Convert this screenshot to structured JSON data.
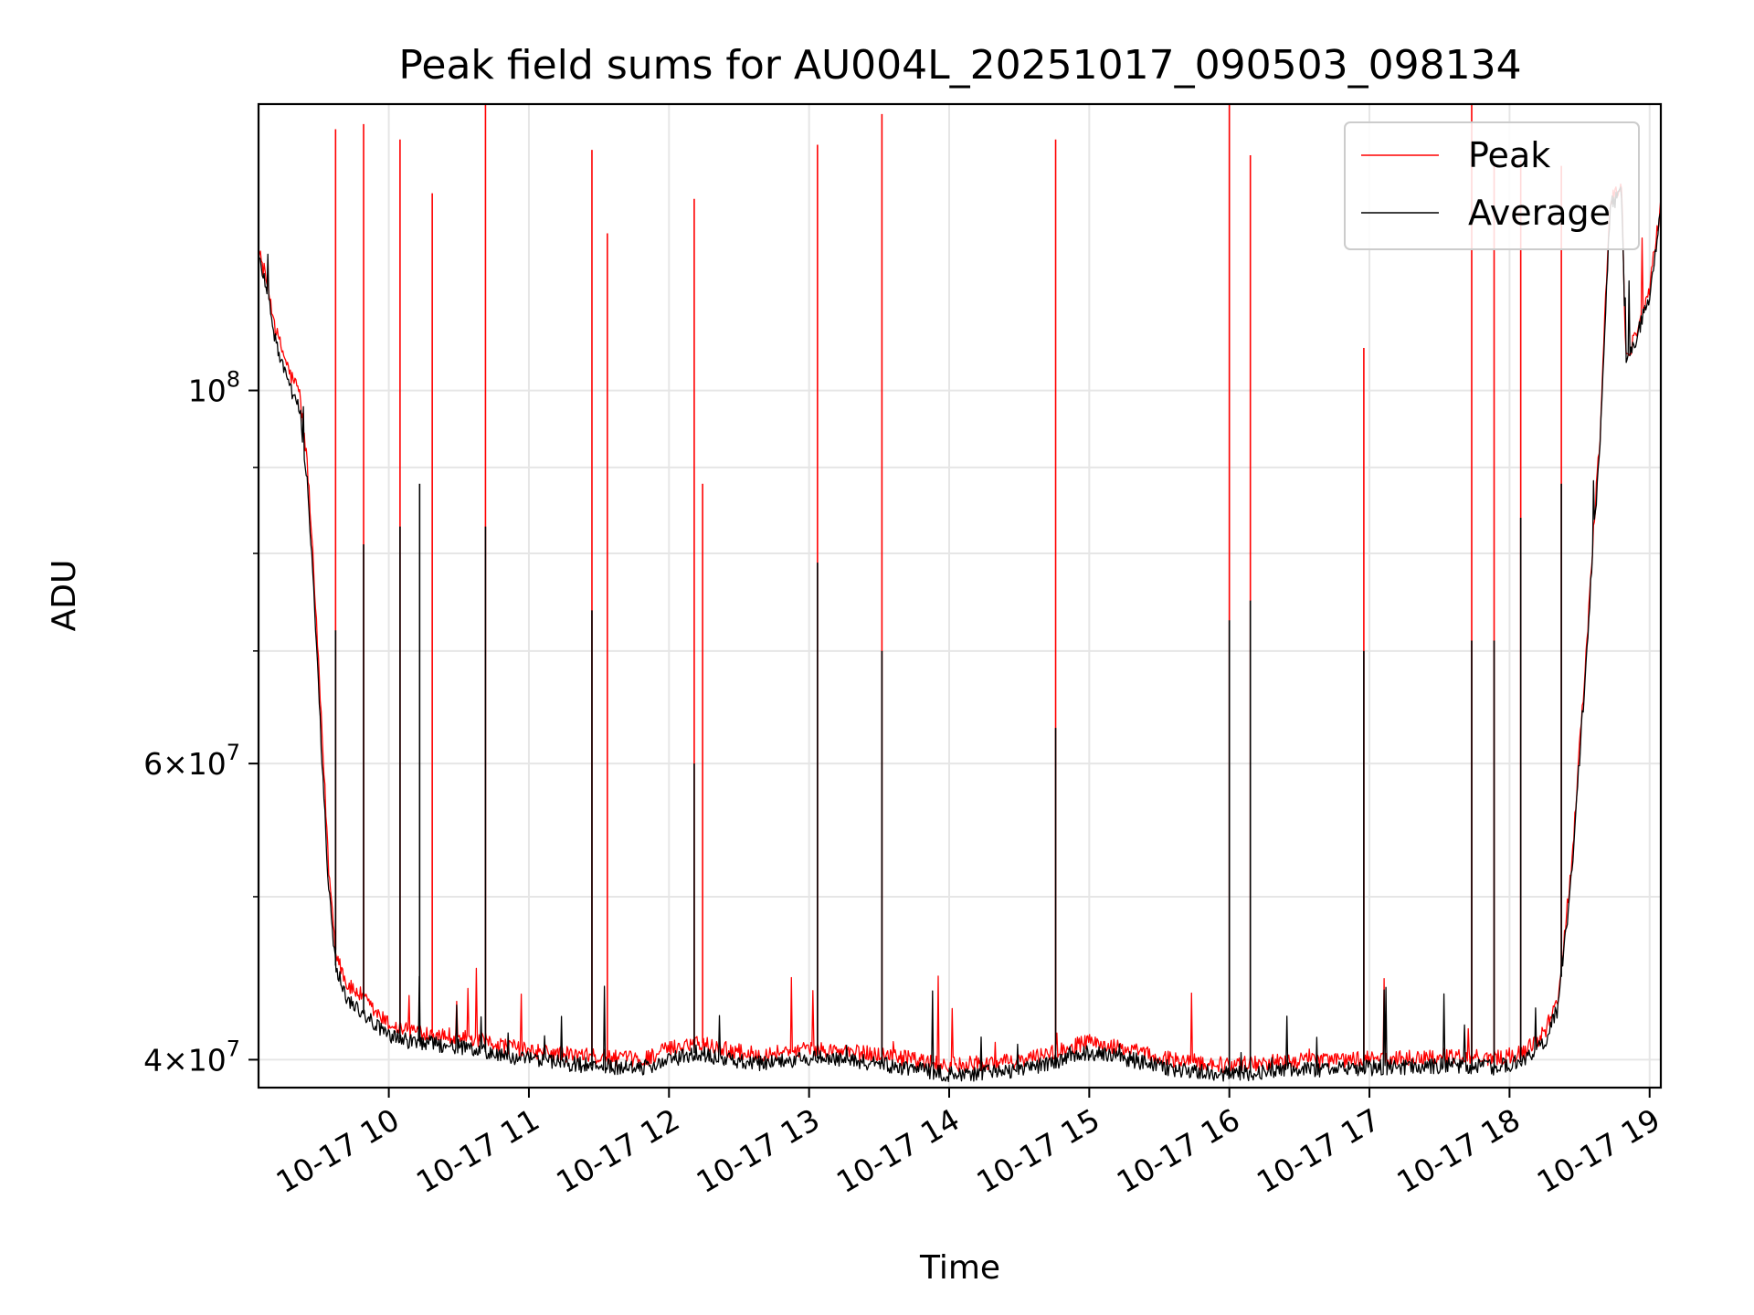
{
  "chart_data": {
    "type": "line",
    "title": "Peak field sums for AU004L_20251017_090503_098134",
    "xlabel": "Time",
    "ylabel": "ADU",
    "yscale": "log",
    "xlim": [
      9.07,
      19.08
    ],
    "ylim": [
      38500000,
      148000000
    ],
    "x_tick_values": [
      10,
      11,
      12,
      13,
      14,
      15,
      16,
      17,
      18,
      19
    ],
    "x_tick_labels": [
      "10-17 10",
      "10-17 11",
      "10-17 12",
      "10-17 13",
      "10-17 14",
      "10-17 15",
      "10-17 16",
      "10-17 17",
      "10-17 18",
      "10-17 19"
    ],
    "y_major_ticks": [
      {
        "value": 40000000,
        "mantissa": "4",
        "exponent": "7"
      },
      {
        "value": 60000000,
        "mantissa": "6",
        "exponent": "7"
      },
      {
        "value": 100000000,
        "mantissa": "",
        "exponent": "8"
      }
    ],
    "y_minor_ticks": [
      50000000,
      70000000,
      80000000,
      90000000
    ],
    "grid": true,
    "legend_position": "top-right",
    "series": [
      {
        "name": "Peak",
        "color": "#ff0000",
        "baseline_points": [
          [
            9.07,
            121000000
          ],
          [
            9.12,
            117000000
          ],
          [
            9.2,
            108000000
          ],
          [
            9.3,
            102000000
          ],
          [
            9.36,
            100000000
          ],
          [
            9.42,
            90000000
          ],
          [
            9.47,
            76000000
          ],
          [
            9.52,
            63000000
          ],
          [
            9.57,
            52000000
          ],
          [
            9.62,
            46500000
          ],
          [
            9.7,
            44300000
          ],
          [
            9.8,
            43700000
          ],
          [
            9.9,
            42700000
          ],
          [
            10.0,
            42000000
          ],
          [
            10.1,
            41700000
          ],
          [
            10.3,
            41500000
          ],
          [
            10.5,
            41300000
          ],
          [
            10.7,
            41000000
          ],
          [
            11.0,
            40500000
          ],
          [
            11.4,
            40200000
          ],
          [
            11.8,
            40000000
          ],
          [
            12.0,
            40600000
          ],
          [
            12.2,
            41000000
          ],
          [
            12.4,
            40600000
          ],
          [
            12.6,
            40300000
          ],
          [
            13.0,
            40600000
          ],
          [
            13.5,
            40300000
          ],
          [
            14.0,
            39700000
          ],
          [
            14.5,
            39900000
          ],
          [
            15.0,
            41000000
          ],
          [
            15.3,
            40500000
          ],
          [
            15.6,
            40000000
          ],
          [
            16.0,
            39700000
          ],
          [
            16.3,
            39900000
          ],
          [
            16.8,
            40000000
          ],
          [
            17.2,
            40100000
          ],
          [
            17.6,
            40200000
          ],
          [
            17.9,
            40100000
          ],
          [
            18.1,
            40400000
          ],
          [
            18.25,
            41500000
          ],
          [
            18.35,
            43500000
          ],
          [
            18.45,
            53000000
          ],
          [
            18.55,
            70000000
          ],
          [
            18.65,
            95000000
          ],
          [
            18.72,
            130000000
          ],
          [
            18.8,
            132000000
          ],
          [
            18.83,
            104000000
          ],
          [
            18.9,
            108000000
          ],
          [
            19.0,
            115000000
          ],
          [
            19.08,
            129000000
          ]
        ],
        "spikes": [
          [
            9.62,
            143000000
          ],
          [
            9.82,
            144000000
          ],
          [
            10.08,
            141000000
          ],
          [
            10.31,
            131000000
          ],
          [
            10.69,
            157000000
          ],
          [
            11.45,
            139000000
          ],
          [
            11.56,
            124000000
          ],
          [
            12.18,
            130000000
          ],
          [
            12.24,
            88000000
          ],
          [
            13.06,
            140000000
          ],
          [
            13.52,
            146000000
          ],
          [
            14.76,
            141000000
          ],
          [
            16.0,
            150000000
          ],
          [
            16.15,
            138000000
          ],
          [
            16.96,
            106000000
          ],
          [
            17.73,
            160000000
          ],
          [
            17.89,
            136000000
          ],
          [
            18.08,
            137000000
          ],
          [
            18.37,
            136000000
          ]
        ]
      },
      {
        "name": "Average",
        "color": "#000000",
        "baseline_points": [
          [
            9.07,
            120000000
          ],
          [
            9.12,
            116000000
          ],
          [
            9.2,
            106000000
          ],
          [
            9.3,
            100000000
          ],
          [
            9.36,
            98000000
          ],
          [
            9.42,
            88000000
          ],
          [
            9.47,
            74000000
          ],
          [
            9.52,
            61000000
          ],
          [
            9.57,
            50500000
          ],
          [
            9.62,
            45500000
          ],
          [
            9.7,
            43500000
          ],
          [
            9.8,
            42800000
          ],
          [
            9.9,
            42000000
          ],
          [
            10.0,
            41300000
          ],
          [
            10.1,
            41100000
          ],
          [
            10.3,
            40900000
          ],
          [
            10.5,
            40700000
          ],
          [
            10.7,
            40400000
          ],
          [
            11.0,
            40000000
          ],
          [
            11.4,
            39700000
          ],
          [
            11.8,
            39500000
          ],
          [
            12.0,
            40000000
          ],
          [
            12.2,
            40400000
          ],
          [
            12.4,
            40000000
          ],
          [
            12.6,
            39800000
          ],
          [
            13.0,
            40100000
          ],
          [
            13.5,
            39800000
          ],
          [
            14.0,
            39200000
          ],
          [
            14.5,
            39400000
          ],
          [
            15.0,
            40400000
          ],
          [
            15.3,
            40000000
          ],
          [
            15.6,
            39500000
          ],
          [
            16.0,
            39200000
          ],
          [
            16.3,
            39400000
          ],
          [
            16.8,
            39500000
          ],
          [
            17.2,
            39600000
          ],
          [
            17.6,
            39700000
          ],
          [
            17.9,
            39600000
          ],
          [
            18.1,
            39900000
          ],
          [
            18.25,
            41000000
          ],
          [
            18.35,
            43000000
          ],
          [
            18.45,
            52000000
          ],
          [
            18.55,
            69000000
          ],
          [
            18.65,
            94000000
          ],
          [
            18.72,
            129000000
          ],
          [
            18.8,
            131000000
          ],
          [
            18.83,
            103000000
          ],
          [
            18.9,
            107000000
          ],
          [
            19.0,
            114000000
          ],
          [
            19.08,
            128000000
          ]
        ],
        "spikes": [
          [
            9.62,
            72000000
          ],
          [
            9.82,
            81000000
          ],
          [
            10.08,
            83000000
          ],
          [
            10.22,
            88000000
          ],
          [
            10.69,
            83000000
          ],
          [
            11.45,
            74000000
          ],
          [
            12.18,
            60000000
          ],
          [
            13.06,
            79000000
          ],
          [
            13.52,
            70000000
          ],
          [
            14.76,
            63000000
          ],
          [
            16.0,
            73000000
          ],
          [
            16.15,
            75000000
          ],
          [
            16.96,
            70000000
          ],
          [
            17.73,
            71000000
          ],
          [
            17.89,
            71000000
          ],
          [
            18.08,
            84000000
          ],
          [
            18.37,
            88000000
          ]
        ]
      }
    ]
  }
}
